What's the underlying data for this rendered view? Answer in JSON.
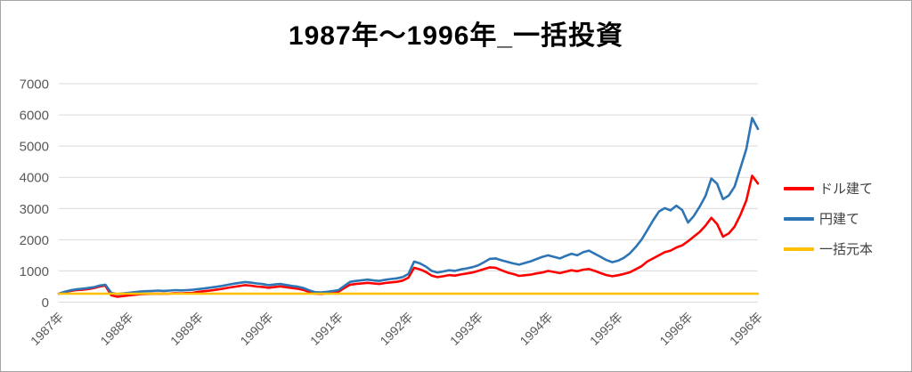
{
  "title": "1987年〜1996年_一括投資",
  "frame": {
    "border_color": "#a6a6a6",
    "background": "#ffffff"
  },
  "chart_data": {
    "type": "line",
    "title": "1987年〜1996年_一括投資",
    "xlabel": "",
    "ylabel": "",
    "ylim": [
      0,
      7000
    ],
    "yticks": [
      0,
      1000,
      2000,
      3000,
      4000,
      5000,
      6000,
      7000
    ],
    "grid": "horizontal",
    "gridline_color": "#d9d9d9",
    "tick_label_color": "#595959",
    "legend_position": "right",
    "x_count": 121,
    "x_tick_indices": [
      0,
      12,
      24,
      36,
      48,
      60,
      72,
      84,
      96,
      108,
      120
    ],
    "x_tick_labels": [
      "1987年",
      "1988年",
      "1989年",
      "1990年",
      "1991年",
      "1992年",
      "1993年",
      "1994年",
      "1995年",
      "1996年",
      "1996年"
    ],
    "series": [
      {
        "name": "ドル建て",
        "color": "#ff0000",
        "values": [
          270,
          320,
          360,
          385,
          395,
          420,
          450,
          500,
          530,
          220,
          175,
          195,
          215,
          235,
          255,
          262,
          268,
          275,
          268,
          275,
          288,
          280,
          290,
          300,
          330,
          350,
          372,
          395,
          425,
          458,
          488,
          515,
          545,
          528,
          500,
          488,
          462,
          482,
          505,
          478,
          452,
          430,
          390,
          322,
          272,
          262,
          282,
          302,
          330,
          450,
          560,
          582,
          600,
          618,
          598,
          582,
          612,
          632,
          650,
          690,
          780,
          1100,
          1050,
          970,
          850,
          800,
          830,
          868,
          850,
          888,
          918,
          950,
          1000,
          1058,
          1115,
          1100,
          1020,
          950,
          900,
          842,
          862,
          882,
          920,
          950,
          1000,
          968,
          930,
          978,
          1020,
          990,
          1040,
          1060,
          1000,
          930,
          868,
          830,
          860,
          905,
          955,
          1050,
          1150,
          1300,
          1400,
          1500,
          1600,
          1650,
          1750,
          1820,
          1950,
          2100,
          2250,
          2450,
          2700,
          2500,
          2100,
          2200,
          2420,
          2800,
          3250,
          4050,
          3800
        ]
      },
      {
        "name": "円建て",
        "color": "#2e75b6",
        "values": [
          270,
          330,
          380,
          410,
          430,
          450,
          480,
          530,
          560,
          300,
          260,
          280,
          300,
          320,
          340,
          350,
          360,
          370,
          360,
          370,
          385,
          375,
          385,
          395,
          420,
          440,
          465,
          490,
          520,
          555,
          590,
          620,
          645,
          625,
          600,
          580,
          545,
          565,
          585,
          550,
          520,
          495,
          450,
          380,
          320,
          310,
          330,
          355,
          385,
          520,
          650,
          680,
          700,
          720,
          695,
          680,
          715,
          740,
          760,
          800,
          900,
          1300,
          1240,
          1140,
          1000,
          950,
          985,
          1020,
          1000,
          1050,
          1080,
          1120,
          1180,
          1280,
          1390,
          1400,
          1340,
          1290,
          1240,
          1200,
          1255,
          1310,
          1380,
          1450,
          1500,
          1450,
          1400,
          1480,
          1550,
          1500,
          1600,
          1650,
          1550,
          1450,
          1350,
          1280,
          1330,
          1420,
          1560,
          1760,
          2000,
          2300,
          2620,
          2900,
          3010,
          2940,
          3090,
          2950,
          2550,
          2760,
          3060,
          3400,
          3960,
          3790,
          3300,
          3420,
          3700,
          4300,
          4900,
          5900,
          5550
        ]
      },
      {
        "name": "一括元本",
        "color": "#ffc000",
        "values": [
          270,
          270
        ]
      }
    ]
  }
}
